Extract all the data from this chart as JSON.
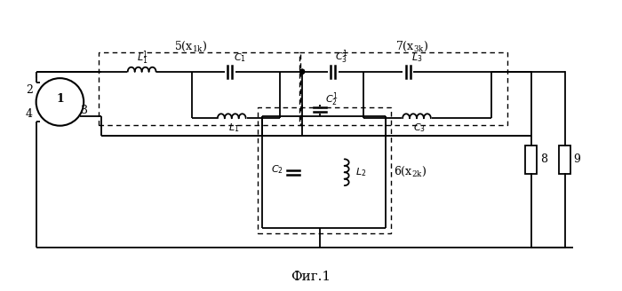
{
  "title": "Фиг.1",
  "background_color": "#ffffff",
  "figsize": [
    7.0,
    3.28
  ],
  "dpi": 100,
  "lw": 1.3
}
